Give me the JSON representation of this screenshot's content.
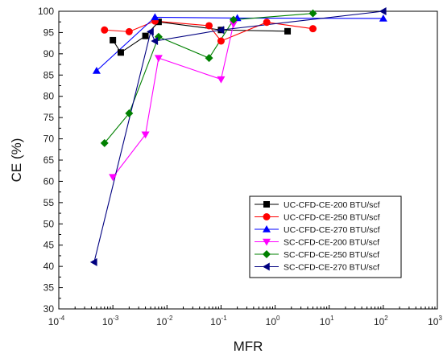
{
  "chart_data": {
    "type": "scatter",
    "xlabel": "MFR",
    "ylabel": "CE (%)",
    "xscale": "log",
    "xlim": [
      0.0001,
      1000
    ],
    "ylim": [
      30,
      100
    ],
    "x_ticks": [
      {
        "base": "10",
        "exp": "-4"
      },
      {
        "base": "10",
        "exp": "-3"
      },
      {
        "base": "10",
        "exp": "-2"
      },
      {
        "base": "10",
        "exp": "-1"
      },
      {
        "base": "10",
        "exp": "0"
      },
      {
        "base": "10",
        "exp": "1"
      },
      {
        "base": "10",
        "exp": "2"
      },
      {
        "base": "10",
        "exp": "3"
      }
    ],
    "y_ticks": [
      "30",
      "35",
      "40",
      "45",
      "50",
      "55",
      "60",
      "65",
      "70",
      "75",
      "80",
      "85",
      "90",
      "95",
      "100"
    ],
    "legend_position": "lower-right",
    "series": [
      {
        "name": "UC-CFD-CE-200 BTU/scf",
        "color": "#000000",
        "marker": "square",
        "points": [
          [
            0.001,
            93.2
          ],
          [
            0.0014,
            90.3
          ],
          [
            0.004,
            94.2
          ],
          [
            0.007,
            97.5
          ],
          [
            0.1,
            95.6
          ],
          [
            1.7,
            95.3
          ]
        ]
      },
      {
        "name": "UC-CFD-CE-250 BTU/scf",
        "color": "#ff0000",
        "marker": "circle",
        "points": [
          [
            0.0007,
            95.6
          ],
          [
            0.002,
            95.2
          ],
          [
            0.006,
            97.7
          ],
          [
            0.06,
            96.6
          ],
          [
            0.1,
            93.0
          ],
          [
            0.7,
            97.4
          ],
          [
            5,
            95.9
          ]
        ]
      },
      {
        "name": "UC-CFD-CE-270 BTU/scf",
        "color": "#0000ff",
        "marker": "triangle-up",
        "points": [
          [
            0.0005,
            86.0
          ],
          [
            0.006,
            98.6
          ],
          [
            0.2,
            98.4
          ],
          [
            100,
            98.3
          ]
        ]
      },
      {
        "name": "SC-CFD-CE-200 BTU/scf",
        "color": "#ff00ff",
        "marker": "triangle-down",
        "points": [
          [
            0.001,
            61.0
          ],
          [
            0.004,
            71.0
          ],
          [
            0.007,
            89.0
          ],
          [
            0.1,
            84.0
          ],
          [
            0.17,
            97.0
          ]
        ]
      },
      {
        "name": "SC-CFD-CE-250 BTU/scf",
        "color": "#008000",
        "marker": "diamond",
        "points": [
          [
            0.0007,
            69.0
          ],
          [
            0.002,
            76.0
          ],
          [
            0.007,
            94.0
          ],
          [
            0.06,
            89.0
          ],
          [
            0.17,
            98.0
          ],
          [
            5,
            99.5
          ]
        ]
      },
      {
        "name": "SC-CFD-CE-270 BTU/scf",
        "color": "#000080",
        "marker": "triangle-left",
        "points": [
          [
            0.00045,
            41.0
          ],
          [
            0.005,
            95.2
          ],
          [
            0.006,
            93.0
          ],
          [
            0.1,
            95.6
          ],
          [
            100,
            100.0
          ]
        ]
      }
    ]
  }
}
